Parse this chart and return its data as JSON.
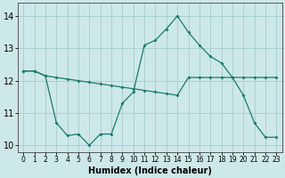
{
  "x": [
    0,
    1,
    2,
    3,
    4,
    5,
    6,
    7,
    8,
    9,
    10,
    11,
    12,
    13,
    14,
    15,
    16,
    17,
    18,
    19,
    20,
    21,
    22,
    23
  ],
  "line_upper": [
    12.3,
    12.3,
    12.15,
    12.1,
    12.05,
    12.0,
    11.95,
    11.9,
    11.85,
    11.8,
    11.75,
    11.7,
    11.65,
    11.6,
    11.55,
    12.1,
    12.1,
    12.1,
    12.1,
    12.1,
    12.1,
    12.1,
    12.1,
    12.1
  ],
  "line_lower": [
    12.3,
    12.3,
    12.15,
    10.7,
    10.3,
    10.35,
    10.0,
    10.35,
    10.35,
    11.3,
    11.65,
    13.1,
    13.25,
    13.6,
    14.0,
    13.5,
    13.1,
    12.75,
    12.55,
    12.1,
    11.55,
    10.7,
    10.25,
    10.25
  ],
  "bg_color": "#cde8e8",
  "grid_color": "#aad0d0",
  "line_color": "#1a7a6e",
  "xlabel": "Humidex (Indice chaleur)",
  "ylim": [
    9.8,
    14.4
  ],
  "xlim": [
    -0.5,
    23.5
  ],
  "yticks": [
    10,
    11,
    12,
    13,
    14
  ],
  "xticks": [
    0,
    1,
    2,
    3,
    4,
    5,
    6,
    7,
    8,
    9,
    10,
    11,
    12,
    13,
    14,
    15,
    16,
    17,
    18,
    19,
    20,
    21,
    22,
    23
  ]
}
